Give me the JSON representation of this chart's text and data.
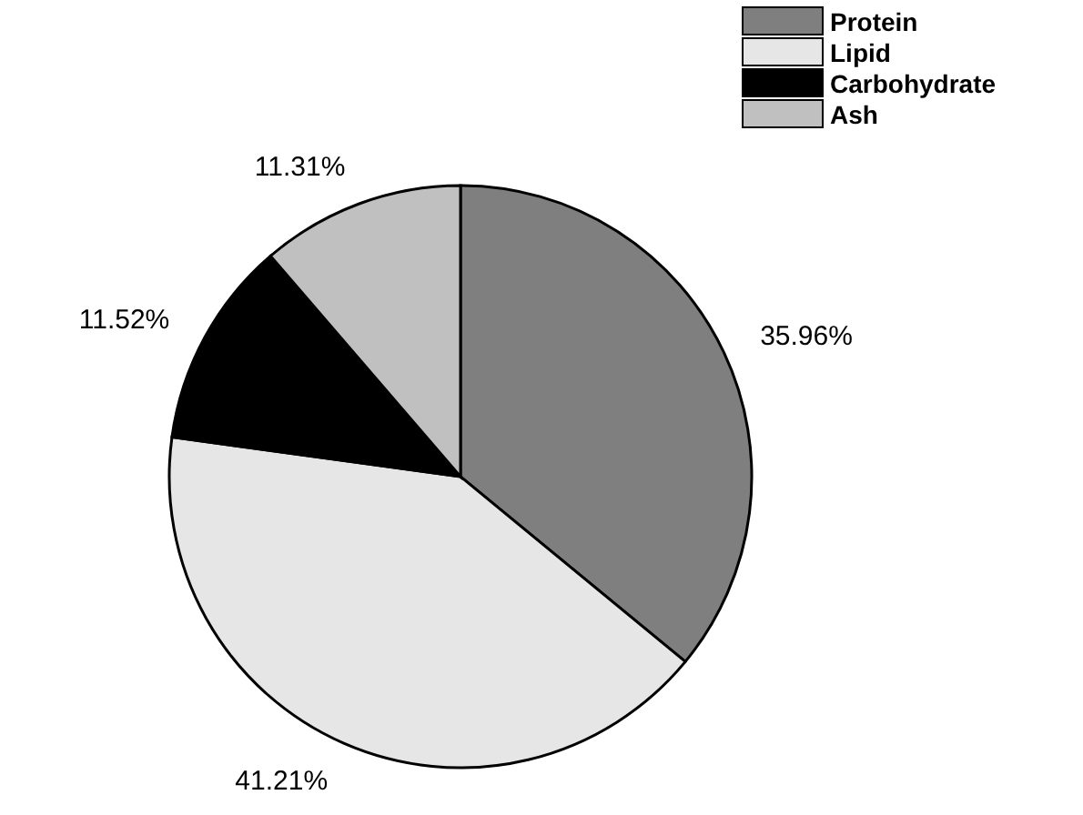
{
  "chart_data": {
    "type": "pie",
    "categories": [
      "Protein",
      "Lipid",
      "Carbohydrate",
      "Ash"
    ],
    "values": [
      35.96,
      41.21,
      11.52,
      11.31
    ],
    "value_labels": [
      "35.96%",
      "41.21%",
      "11.52%",
      "11.31%"
    ],
    "colors": [
      "#7f7f7f",
      "#e6e6e6",
      "#000000",
      "#c0c0c0"
    ],
    "legend": "top right"
  }
}
